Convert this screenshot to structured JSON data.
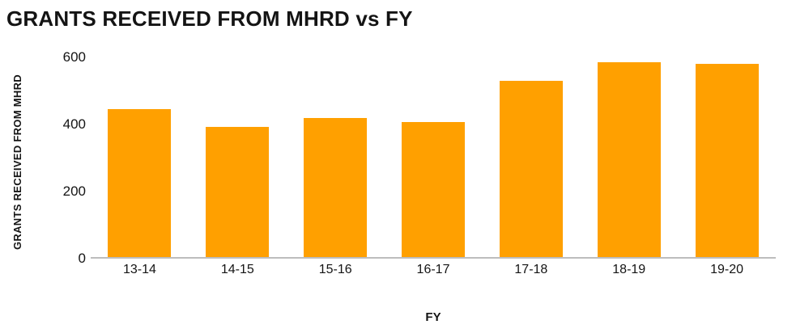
{
  "chart_data": {
    "type": "bar",
    "title": "GRANTS RECEIVED FROM MHRD vs FY",
    "xlabel": "FY",
    "ylabel": "GRANTS RECEIVED FROM MHRD",
    "categories": [
      "13-14",
      "14-15",
      "15-16",
      "16-17",
      "17-18",
      "18-19",
      "19-20"
    ],
    "values": [
      440,
      388,
      415,
      403,
      525,
      580,
      575
    ],
    "yticks": [
      0,
      200,
      400,
      600
    ],
    "ylim": [
      0,
      620
    ],
    "grid": false,
    "legend": false,
    "colors": {
      "bar": "#FFA000",
      "axis": "#BDBDBD",
      "text": "#141414"
    }
  }
}
